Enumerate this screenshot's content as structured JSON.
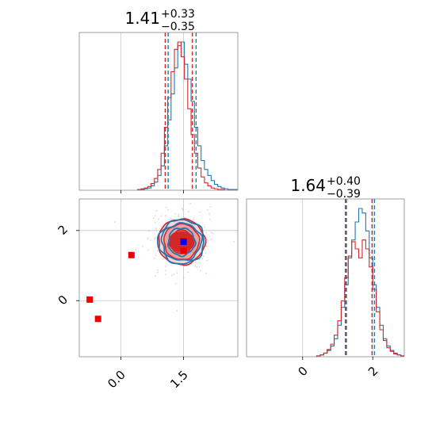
{
  "chart_data": [
    {
      "type": "histogram",
      "panel": "top-left",
      "title": {
        "value": "1.41",
        "plus": "+0.33",
        "minus": "−0.35"
      },
      "xlim": [
        -1.0,
        2.8
      ],
      "grid": true,
      "colors": {
        "series_a": "#1f77b4",
        "series_b": "#d62728",
        "grid": "#c8c8c8"
      },
      "quantiles": {
        "series_a": [
          1.13,
          1.41,
          1.8
        ],
        "series_b": [
          1.06,
          1.41,
          1.71
        ]
      },
      "bins": [
        0.4,
        0.48,
        0.56,
        0.64,
        0.72,
        0.8,
        0.88,
        0.96,
        1.04,
        1.12,
        1.2,
        1.28,
        1.36,
        1.44,
        1.52,
        1.6,
        1.68,
        1.76,
        1.84,
        1.92,
        2.0,
        2.08,
        2.16,
        2.24,
        2.32,
        2.4,
        2.48,
        2.56,
        2.64,
        2.72,
        2.8
      ],
      "series": [
        {
          "counts": [
            1,
            1,
            2,
            3,
            6,
            11,
            20,
            33,
            60,
            95,
            130,
            165,
            195,
            200,
            170,
            150,
            120,
            85,
            60,
            40,
            28,
            20,
            13,
            8,
            5,
            3,
            2,
            1,
            1,
            1
          ]
        },
        {
          "counts": [
            1,
            2,
            3,
            5,
            9,
            16,
            28,
            50,
            85,
            125,
            160,
            190,
            200,
            180,
            150,
            110,
            75,
            50,
            30,
            18,
            10,
            6,
            3,
            2,
            1,
            1,
            0,
            0,
            0,
            0
          ]
        }
      ]
    },
    {
      "type": "scatter",
      "panel": "bottom-left",
      "xlim": [
        -1.0,
        2.8
      ],
      "ylim": [
        -1.6,
        2.9
      ],
      "xticks": [
        "0.0",
        "1.5"
      ],
      "xtick_values": [
        0.0,
        1.5
      ],
      "yticks": [
        "0",
        "2"
      ],
      "ytick_values": [
        0,
        2
      ],
      "grid": true,
      "contours": {
        "center": [
          1.45,
          1.68
        ],
        "series_a_radii": [
          [
            0.55,
            0.72
          ],
          [
            0.82,
            0.96
          ],
          [
            0.95,
            1.15
          ]
        ],
        "series_b_radii": [
          [
            0.42,
            0.55
          ],
          [
            0.68,
            0.82
          ],
          [
            0.9,
            1.05
          ]
        ]
      },
      "markers_red": [
        [
          -0.75,
          0.03
        ],
        [
          -0.55,
          -0.52
        ],
        [
          0.25,
          1.3
        ],
        [
          1.5,
          1.42
        ],
        [
          1.5,
          1.7
        ]
      ],
      "markers_blue": [
        [
          1.5,
          1.68
        ]
      ]
    },
    {
      "type": "histogram",
      "panel": "bottom-right",
      "title": {
        "value": "1.64",
        "plus": "+0.40",
        "minus": "−0.39"
      },
      "xlim": [
        -1.6,
        2.9
      ],
      "xticks": [
        "0",
        "2"
      ],
      "xtick_values": [
        0,
        2
      ],
      "grid": true,
      "quantiles": {
        "series_a": [
          1.25,
          1.64,
          2.05
        ],
        "series_b": [
          1.22,
          1.64,
          1.98
        ]
      },
      "bins": [
        0.4,
        0.5,
        0.6,
        0.7,
        0.8,
        0.9,
        1.0,
        1.1,
        1.2,
        1.3,
        1.4,
        1.5,
        1.6,
        1.7,
        1.8,
        1.9,
        2.0,
        2.1,
        2.2,
        2.3,
        2.4,
        2.5,
        2.6,
        2.7,
        2.8,
        2.9
      ],
      "series": [
        {
          "counts": [
            1,
            2,
            4,
            7,
            12,
            20,
            35,
            55,
            80,
            110,
            130,
            150,
            165,
            160,
            140,
            110,
            80,
            55,
            35,
            20,
            12,
            7,
            4,
            2,
            1
          ]
        },
        {
          "counts": [
            1,
            2,
            4,
            8,
            14,
            24,
            40,
            62,
            88,
            112,
            128,
            120,
            110,
            130,
            120,
            100,
            75,
            50,
            30,
            18,
            10,
            6,
            3,
            2,
            1
          ]
        }
      ]
    }
  ]
}
